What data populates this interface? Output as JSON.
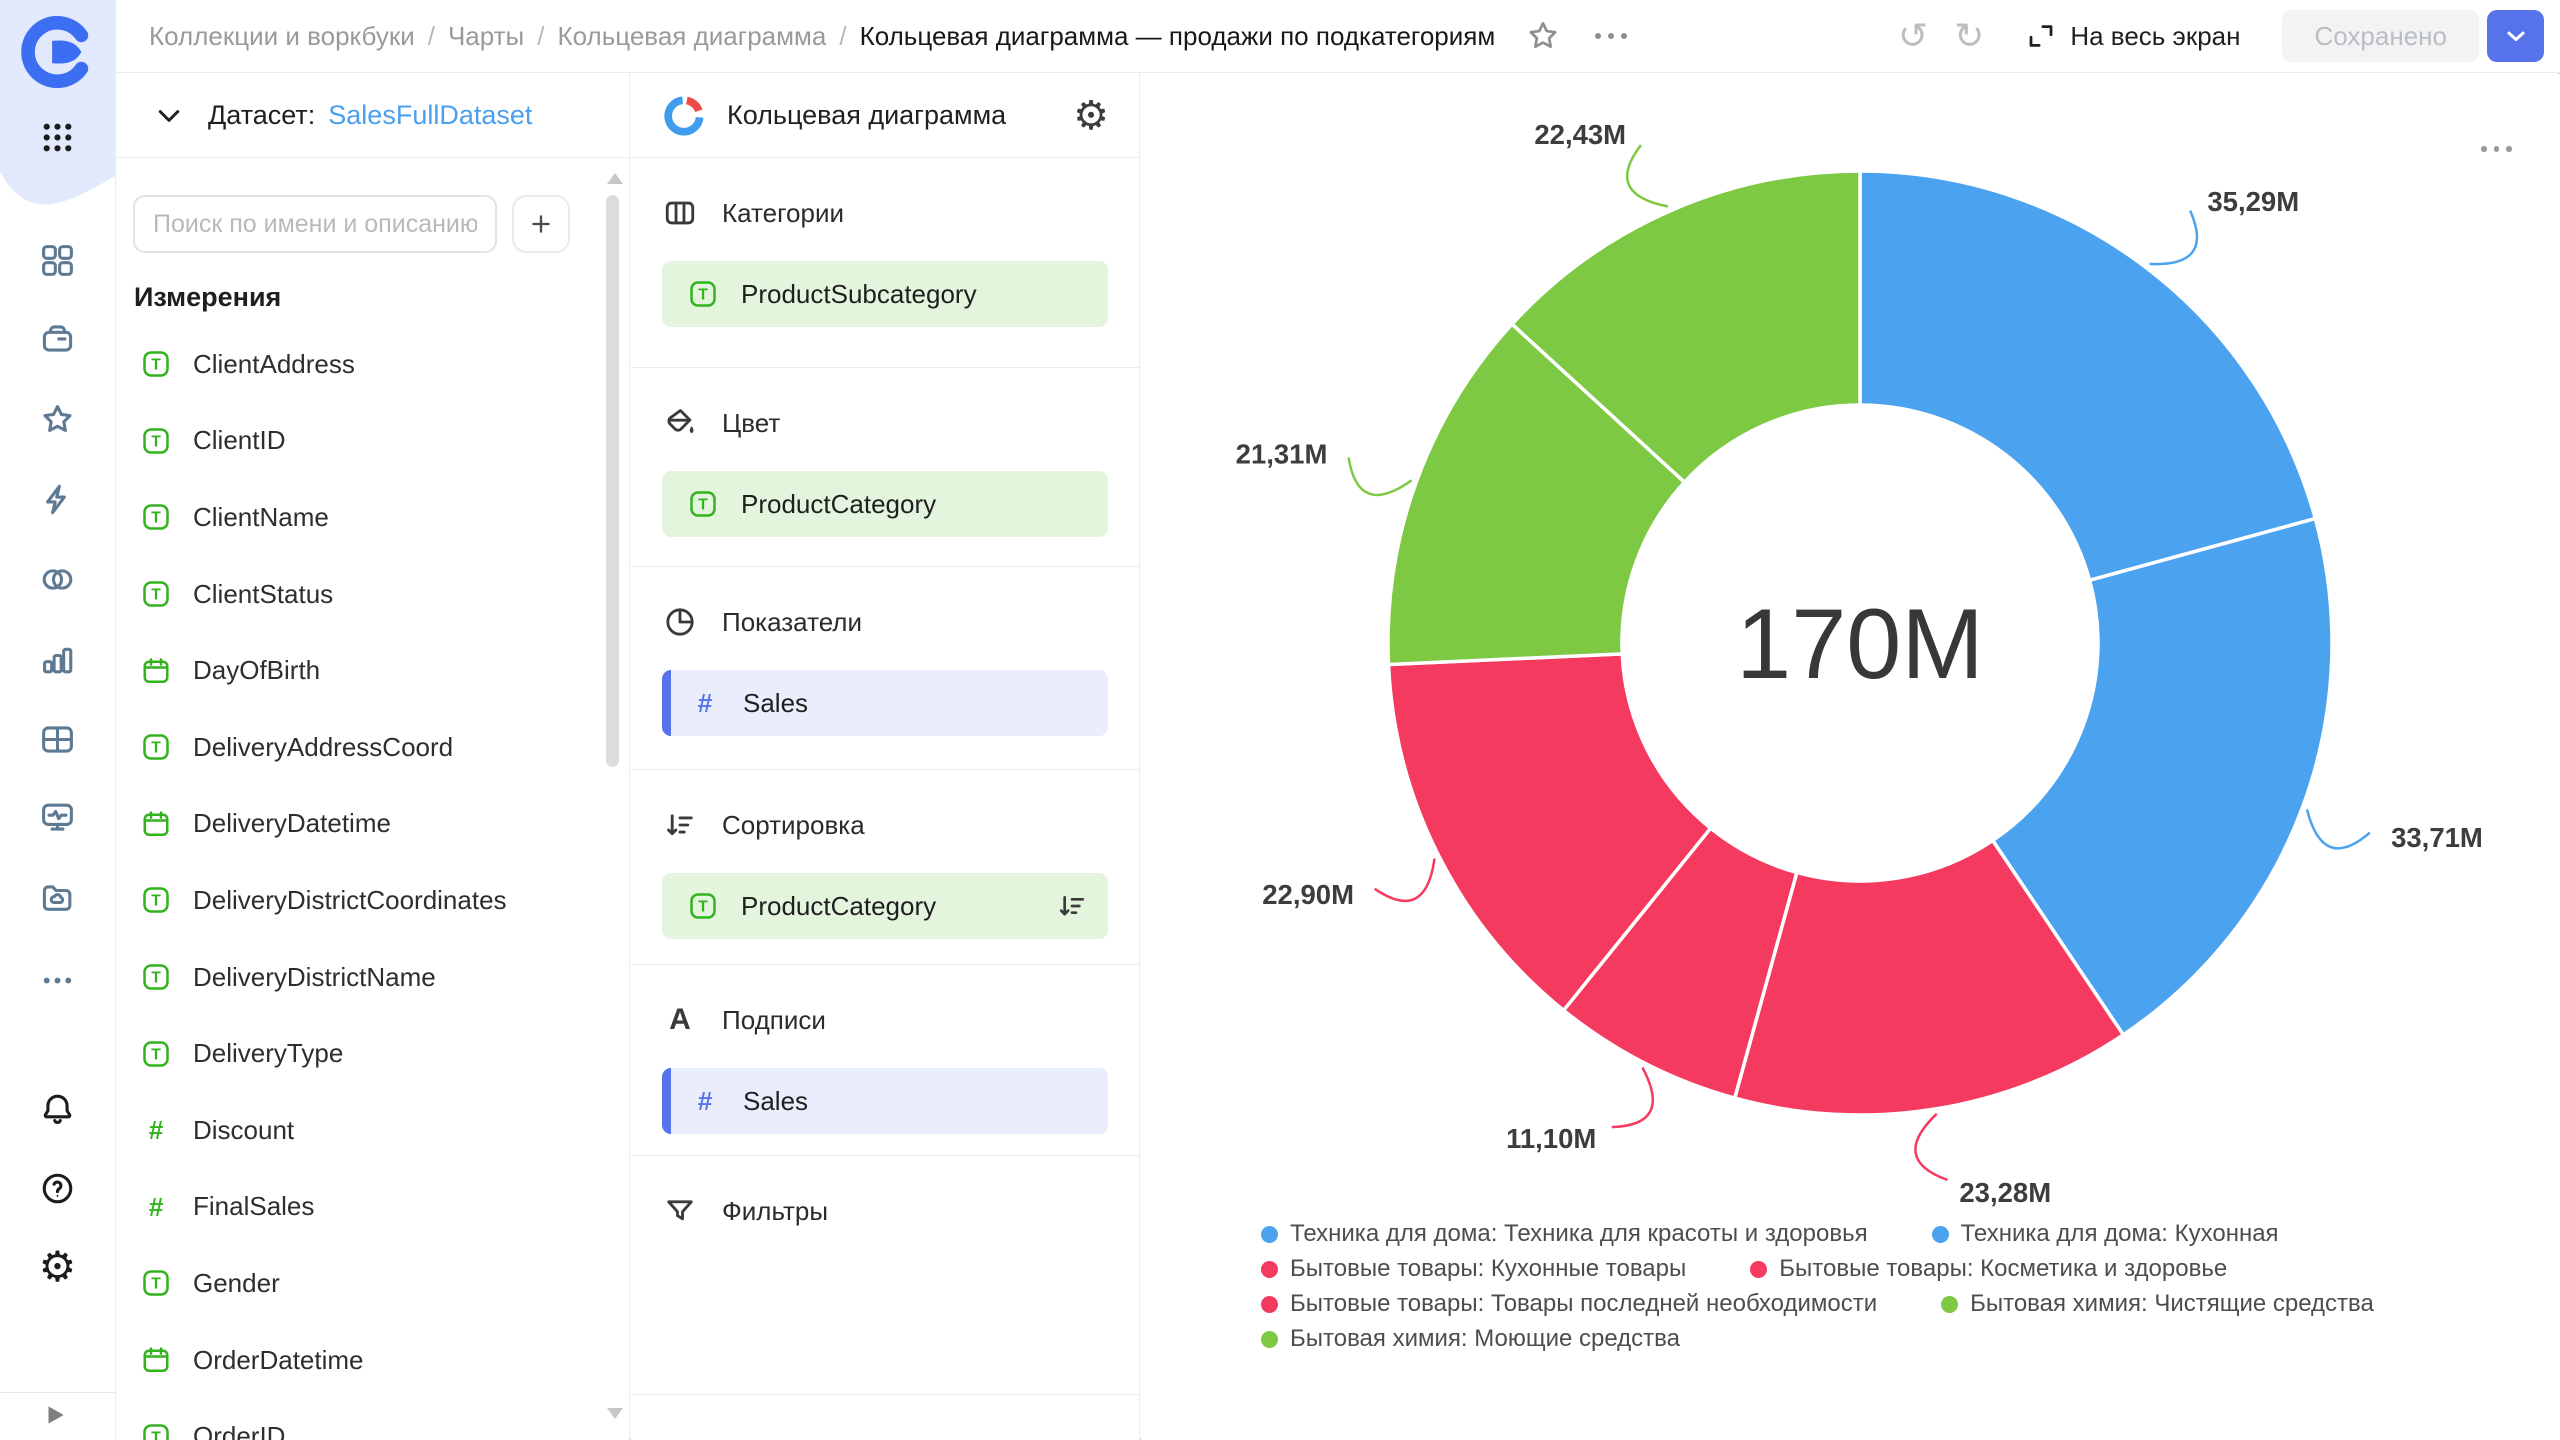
{
  "topbar": {
    "breadcrumbs": [
      "Коллекции и воркбуки",
      "Чарты",
      "Кольцевая диаграмма"
    ],
    "current_page": "Кольцевая диаграмма — продажи по подкатегориям",
    "fullscreen_label": "На весь экран",
    "saved_label": "Сохранено",
    "icons": [
      "star-icon",
      "more-icon",
      "undo-icon",
      "redo-icon",
      "fullscreen-icon",
      "chevron-down-icon"
    ]
  },
  "left_rail": {
    "icons": [
      "services-grid-icon",
      "collections-icon",
      "favorites-star-icon",
      "connections-lightning-icon",
      "datasets-circles-icon",
      "charts-bar-icon",
      "dashboards-table-icon",
      "monitoring-icon",
      "storage-folder-icon",
      "more-icon",
      "notifications-bell-icon",
      "help-icon",
      "settings-gear-icon"
    ],
    "expand_icon": "expand-sidebar-icon"
  },
  "dataset_panel": {
    "dataset_label": "Датасет:",
    "dataset_name": "SalesFullDataset",
    "search_placeholder": "Поиск по имени и описанию",
    "add_button_icon": "plus-icon",
    "dimensions_title": "Измерения",
    "fields": [
      {
        "name": "ClientAddress",
        "type": "string"
      },
      {
        "name": "ClientID",
        "type": "string"
      },
      {
        "name": "ClientName",
        "type": "string"
      },
      {
        "name": "ClientStatus",
        "type": "string"
      },
      {
        "name": "DayOfBirth",
        "type": "date"
      },
      {
        "name": "DeliveryAddressCoord",
        "type": "string"
      },
      {
        "name": "DeliveryDatetime",
        "type": "date"
      },
      {
        "name": "DeliveryDistrictCoordinates",
        "type": "string"
      },
      {
        "name": "DeliveryDistrictName",
        "type": "string"
      },
      {
        "name": "DeliveryType",
        "type": "string"
      },
      {
        "name": "Discount",
        "type": "number"
      },
      {
        "name": "FinalSales",
        "type": "number"
      },
      {
        "name": "Gender",
        "type": "string"
      },
      {
        "name": "OrderDatetime",
        "type": "date"
      },
      {
        "name": "OrderID",
        "type": "string"
      }
    ]
  },
  "config_panel": {
    "title": "Кольцевая диаграмма",
    "title_icon": "donut-chart-icon",
    "settings_icon": "gear-icon",
    "sections": [
      {
        "label": "Категории",
        "icon": "categories-icon",
        "items": [
          {
            "name": "ProductSubcategory",
            "type": "string",
            "kind": "dimension"
          }
        ]
      },
      {
        "label": "Цвет",
        "icon": "color-bucket-icon",
        "items": [
          {
            "name": "ProductCategory",
            "type": "string",
            "kind": "dimension"
          }
        ]
      },
      {
        "label": "Показатели",
        "icon": "measures-pie-icon",
        "items": [
          {
            "name": "Sales",
            "type": "number",
            "kind": "measure"
          }
        ]
      },
      {
        "label": "Сортировка",
        "icon": "sort-icon",
        "items": [
          {
            "name": "ProductCategory",
            "type": "string",
            "kind": "dimension",
            "sort": true
          }
        ]
      },
      {
        "label": "Подписи",
        "icon": "labels-a-icon",
        "items": [
          {
            "name": "Sales",
            "type": "number",
            "kind": "measure"
          }
        ]
      },
      {
        "label": "Фильтры",
        "icon": "filters-funnel-icon",
        "items": []
      }
    ]
  },
  "chart_data": {
    "type": "donut",
    "center_label": "170M",
    "total": 170.02,
    "unit": "M",
    "legend_position": "bottom",
    "series": [
      {
        "category": "Техника для дома",
        "subcategory": "Техника для красоты и здоровья",
        "value": 35.29,
        "label": "35,29M",
        "color": "#4BA2EE"
      },
      {
        "category": "Техника для дома",
        "subcategory": "Кухонная",
        "value": 33.71,
        "label": "33,71M",
        "color": "#4BA2EE"
      },
      {
        "category": "Бытовые товары",
        "subcategory": "Кухонные товары",
        "value": 23.28,
        "label": "23,28M",
        "color": "#F43A5F"
      },
      {
        "category": "Бытовые товары",
        "subcategory": "Косметика и здоровье",
        "value": 11.1,
        "label": "11,10M",
        "color": "#F43A5F"
      },
      {
        "category": "Бытовые товары",
        "subcategory": "Товары последней необходимости",
        "value": 22.9,
        "label": "22,90M",
        "color": "#F43A5F"
      },
      {
        "category": "Бытовая химия",
        "subcategory": "Чистящие средства",
        "value": 21.31,
        "label": "21,31M",
        "color": "#7EC943"
      },
      {
        "category": "Бытовая химия",
        "subcategory": "Моющие средства",
        "value": 22.43,
        "label": "22,43M",
        "color": "#7EC943"
      }
    ],
    "legend_rows": [
      [
        0,
        1
      ],
      [
        2,
        3
      ],
      [
        4,
        5
      ],
      [
        6
      ]
    ],
    "menu_icon": "ellipsis-menu-icon"
  },
  "colors": {
    "slice_blue": "#4BA2EE",
    "slice_red": "#F43A5F",
    "slice_green": "#7EC943",
    "dimension_green": "#32B31E",
    "measure_blue": "#5673EC",
    "accent_button_blue": "#5673EC",
    "rail_icon_slate": "#5E7A93",
    "link_blue": "#4AA0EE"
  }
}
